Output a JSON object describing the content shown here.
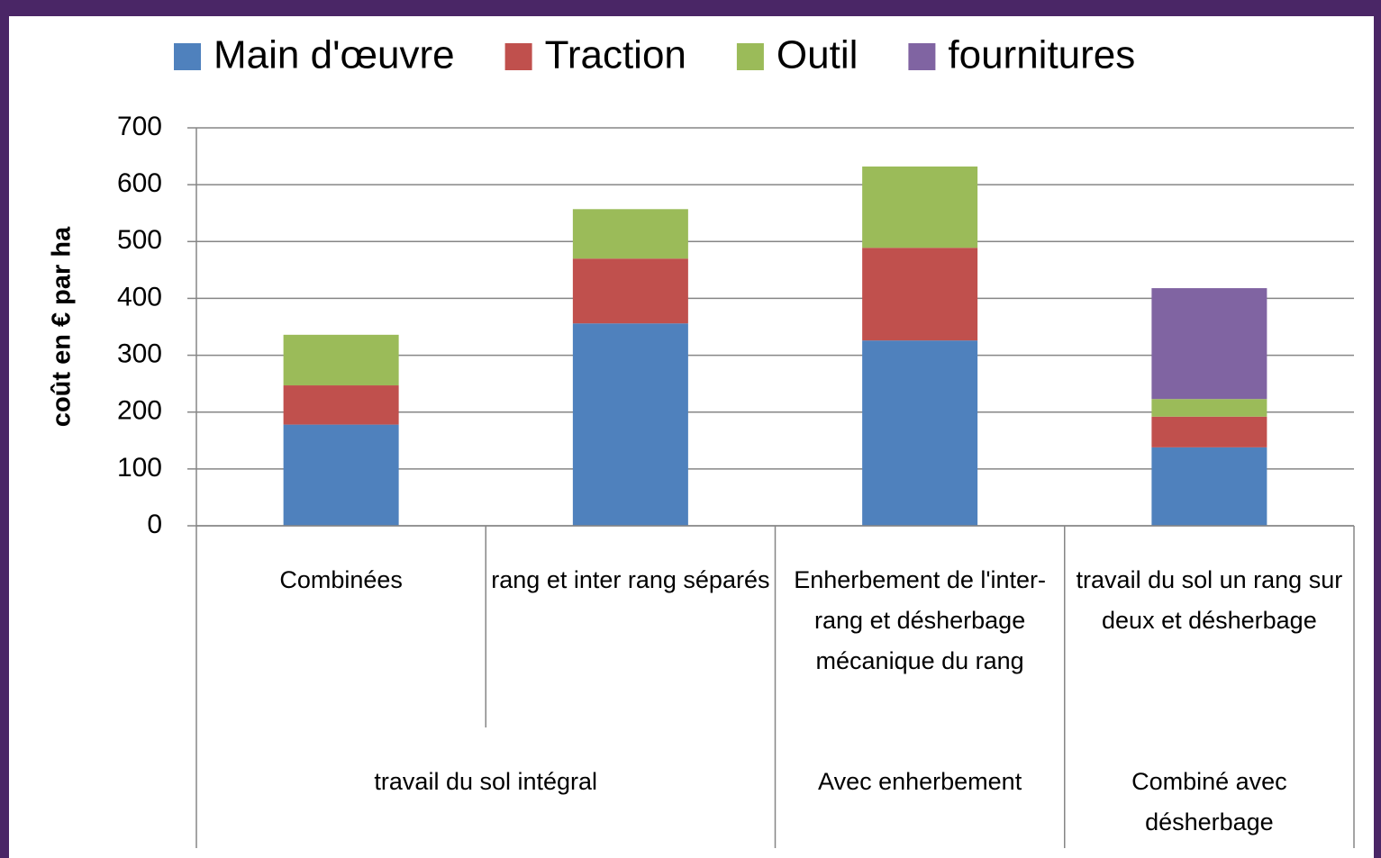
{
  "chart_data": {
    "type": "stacked-bar",
    "y_label": "coût en € par ha",
    "categories": [
      "Combinées",
      "rang et inter rang séparés",
      "Enherbement de l'inter-rang et désherbage mécanique du rang",
      "travail du sol un rang sur deux et désherbage"
    ],
    "category_groups": [
      "travail du sol intégral",
      "travail du sol intégral",
      "Avec enherbement",
      "Combiné avec désherbage"
    ],
    "series": [
      {
        "name": "Main d'œuvre",
        "color": "#4f81bd",
        "values": [
          178,
          356,
          326,
          138
        ]
      },
      {
        "name": "Traction",
        "color": "#c0504d",
        "values": [
          69,
          114,
          163,
          54
        ]
      },
      {
        "name": "Outil",
        "color": "#9bbb59",
        "values": [
          89,
          87,
          143,
          31
        ]
      },
      {
        "name": "fournitures",
        "color": "#8064a2",
        "values": [
          0,
          0,
          0,
          195
        ]
      }
    ],
    "ylim": [
      0,
      700
    ],
    "yticks": [
      0,
      100,
      200,
      300,
      400,
      500,
      600,
      700
    ],
    "grid": true,
    "legend": "top"
  }
}
